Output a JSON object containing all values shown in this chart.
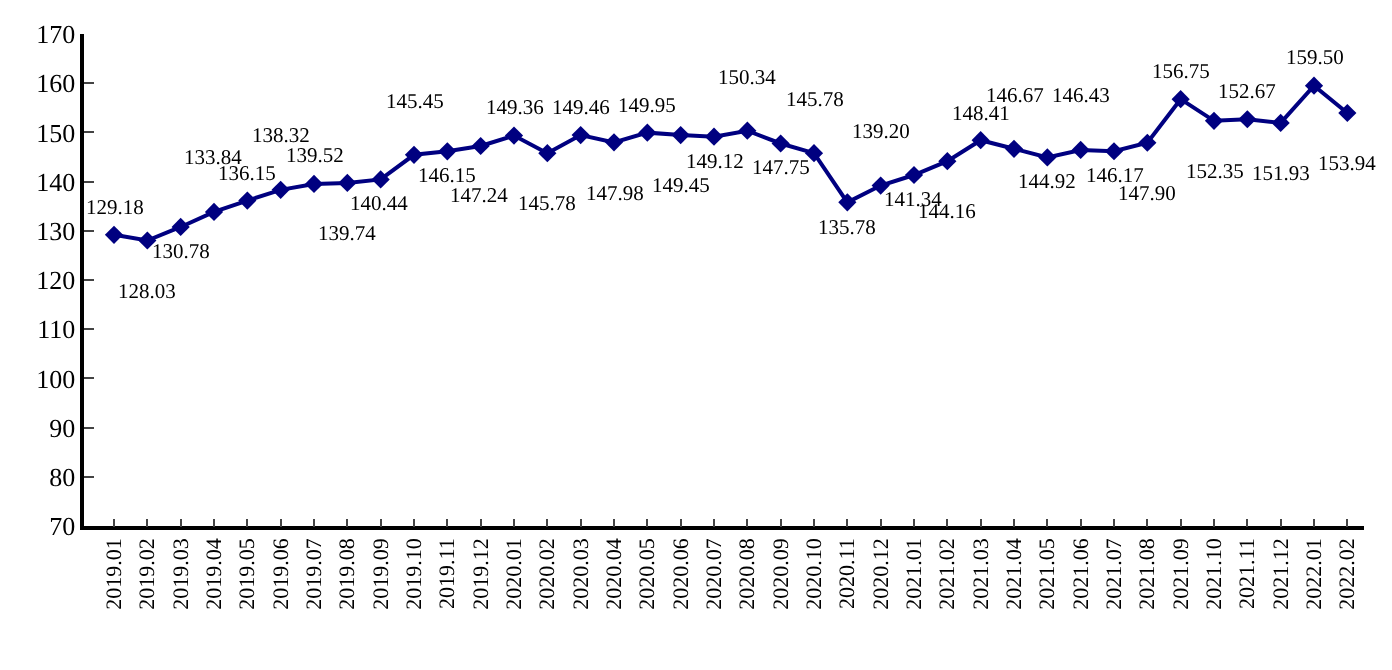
{
  "chart_data": {
    "type": "line",
    "categories": [
      "2019.01",
      "2019.02",
      "2019.03",
      "2019.04",
      "2019.05",
      "2019.06",
      "2019.07",
      "2019.08",
      "2019.09",
      "2019.10",
      "2019.11",
      "2019.12",
      "2020.01",
      "2020.02",
      "2020.03",
      "2020.04",
      "2020.05",
      "2020.06",
      "2020.07",
      "2020.08",
      "2020.09",
      "2020.10",
      "2020.11",
      "2020.12",
      "2021.01",
      "2021.02",
      "2021.03",
      "2021.04",
      "2021.05",
      "2021.06",
      "2021.07",
      "2021.08",
      "2021.09",
      "2021.10",
      "2021.11",
      "2021.12",
      "2022.01",
      "2022.02"
    ],
    "series": [
      {
        "color": "#000080",
        "values": [
          129.18,
          128.03,
          130.78,
          133.84,
          136.15,
          138.32,
          139.52,
          139.74,
          140.44,
          145.45,
          146.15,
          147.24,
          149.36,
          145.78,
          149.46,
          147.98,
          149.95,
          149.45,
          149.12,
          150.34,
          147.75,
          145.78,
          135.78,
          139.2,
          141.34,
          144.16,
          148.41,
          146.67,
          144.92,
          146.43,
          146.17,
          147.9,
          156.75,
          152.35,
          152.67,
          151.93,
          159.5,
          153.94
        ],
        "value_labels": [
          "129.18",
          "128.03",
          "130.78",
          "133.84",
          "136.15",
          "138.32",
          "139.52",
          "139.74",
          "140.44",
          "145.45",
          "146.15",
          "147.24",
          "149.36",
          "145.78",
          "149.46",
          "147.98",
          "149.95",
          "149.45",
          "149.12",
          "150.34",
          "147.75",
          "145.78",
          "135.78",
          "139.20",
          "141.34",
          "144.16",
          "148.41",
          "146.67",
          "144.92",
          "146.43",
          "146.17",
          "147.90",
          "156.75",
          "152.35",
          "152.67",
          "151.93",
          "159.50",
          "153.94"
        ]
      }
    ],
    "ylim": [
      70,
      170
    ],
    "yticks": [
      70,
      80,
      90,
      100,
      110,
      120,
      130,
      140,
      150,
      160,
      170
    ],
    "legend": false,
    "marker": "diamond",
    "line_style": "solid"
  }
}
